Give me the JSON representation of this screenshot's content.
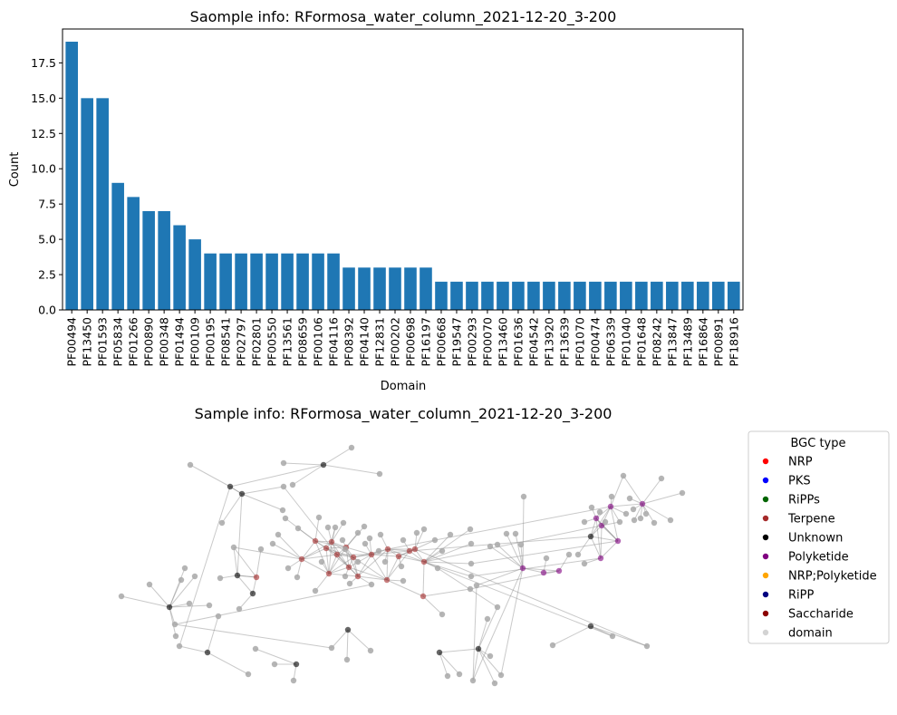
{
  "chart_data": [
    {
      "type": "bar",
      "title": "Saomple info: RFormosa_water_column_2021-12-20_3-200",
      "xlabel": "Domain",
      "ylabel": "Count",
      "ylim": [
        0,
        19.9
      ],
      "yticks": [
        "0.0",
        "2.5",
        "5.0",
        "7.5",
        "10.0",
        "12.5",
        "15.0",
        "17.5"
      ],
      "grid": false,
      "bar_color": "#1f77b4",
      "categories": [
        "PF00494",
        "PF13450",
        "PF01593",
        "PF05834",
        "PF01266",
        "PF00890",
        "PF00348",
        "PF01494",
        "PF00109",
        "PF00195",
        "PF08541",
        "PF02797",
        "PF02801",
        "PF00550",
        "PF13561",
        "PF08659",
        "PF00106",
        "PF04116",
        "PF08392",
        "PF04140",
        "PF12831",
        "PF00202",
        "PF00698",
        "PF16197",
        "PF00668",
        "PF19547",
        "PF00293",
        "PF00070",
        "PF13460",
        "PF01636",
        "PF04542",
        "PF13920",
        "PF13639",
        "PF01070",
        "PF00474",
        "PF06339",
        "PF01040",
        "PF01648",
        "PF08242",
        "PF13847",
        "PF13489",
        "PF16864",
        "PF00891",
        "PF18916"
      ],
      "values": [
        19,
        15,
        15,
        9,
        8,
        7,
        7,
        6,
        5,
        4,
        4,
        4,
        4,
        4,
        4,
        4,
        4,
        4,
        3,
        3,
        3,
        3,
        3,
        3,
        2,
        2,
        2,
        2,
        2,
        2,
        2,
        2,
        2,
        2,
        2,
        2,
        2,
        2,
        2,
        2,
        2,
        2,
        2,
        2
      ]
    },
    {
      "type": "network",
      "title": "Sample info: RFormosa_water_column_2021-12-20_3-200",
      "legend": {
        "title": "BGC type",
        "placement": "right",
        "entries": [
          {
            "label": "NRP",
            "color": "#ff0000"
          },
          {
            "label": "PKS",
            "color": "#0000ff"
          },
          {
            "label": "RiPPs",
            "color": "#006400"
          },
          {
            "label": "Terpene",
            "color": "#a52a2a"
          },
          {
            "label": "Unknown",
            "color": "#000000"
          },
          {
            "label": "Polyketide",
            "color": "#800080"
          },
          {
            "label": "NRP;Polyketide",
            "color": "#ffa500"
          },
          {
            "label": "RiPP",
            "color": "#000080"
          },
          {
            "label": "Saccharide",
            "color": "#8b0000"
          },
          {
            "label": "domain",
            "color": "#d3d3d3"
          }
        ]
      }
    }
  ]
}
